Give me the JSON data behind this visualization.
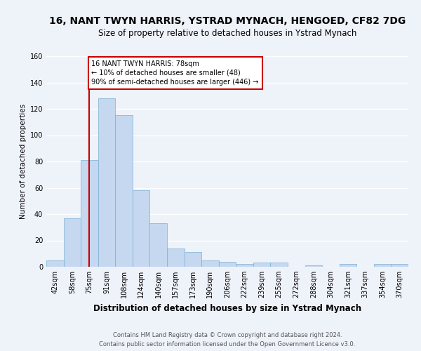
{
  "title": "16, NANT TWYN HARRIS, YSTRAD MYNACH, HENGOED, CF82 7DG",
  "subtitle": "Size of property relative to detached houses in Ystrad Mynach",
  "xlabel": "Distribution of detached houses by size in Ystrad Mynach",
  "ylabel": "Number of detached properties",
  "categories": [
    "42sqm",
    "58sqm",
    "75sqm",
    "91sqm",
    "108sqm",
    "124sqm",
    "140sqm",
    "157sqm",
    "173sqm",
    "190sqm",
    "206sqm",
    "222sqm",
    "239sqm",
    "255sqm",
    "272sqm",
    "288sqm",
    "304sqm",
    "321sqm",
    "337sqm",
    "354sqm",
    "370sqm"
  ],
  "values": [
    5,
    37,
    81,
    128,
    115,
    58,
    33,
    14,
    11,
    5,
    4,
    2,
    3,
    3,
    0,
    1,
    0,
    2,
    0,
    2,
    2
  ],
  "bar_color": "#c5d8f0",
  "bar_edge_color": "#7aafd4",
  "property_line_color": "#cc0000",
  "property_bin_index": 2,
  "annotation_line1": "16 NANT TWYN HARRIS: 78sqm",
  "annotation_line2": "← 10% of detached houses are smaller (48)",
  "annotation_line3": "90% of semi-detached houses are larger (446) →",
  "annotation_box_color": "#cc0000",
  "ylim": [
    0,
    160
  ],
  "yticks": [
    0,
    20,
    40,
    60,
    80,
    100,
    120,
    140,
    160
  ],
  "footer_line1": "Contains HM Land Registry data © Crown copyright and database right 2024.",
  "footer_line2": "Contains public sector information licensed under the Open Government Licence v3.0.",
  "bg_color": "#eef2f9",
  "grid_color": "#ffffff",
  "title_fontsize": 10,
  "subtitle_fontsize": 8.5,
  "xlabel_fontsize": 8.5,
  "ylabel_fontsize": 7.5,
  "tick_fontsize": 7,
  "annotation_fontsize": 7,
  "footer_fontsize": 6
}
